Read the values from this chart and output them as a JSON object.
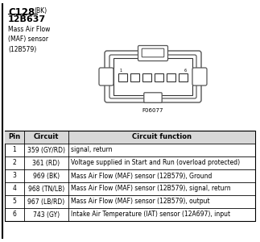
{
  "title": "C128",
  "title_suffix": "(BK)",
  "subtitle": "12B637",
  "description": "Mass Air Flow\n(MAF) sensor\n(12B579)",
  "figure_label": "F06077",
  "background_color": "#ffffff",
  "table_headers": [
    "Pin",
    "Circuit",
    "Circuit function"
  ],
  "table_rows": [
    [
      "1",
      "359 (GY/RD)",
      "signal, return"
    ],
    [
      "2",
      "361 (RD)",
      "Voltage supplied in Start and Run (overload protected)"
    ],
    [
      "3",
      "969 (BK)",
      "Mass Air Flow (MAF) sensor (12B579), Ground"
    ],
    [
      "4",
      "968 (TN/LB)",
      "Mass Air Flow (MAF) sensor (12B579), signal, return"
    ],
    [
      "5",
      "967 (LB/RD)",
      "Mass Air Flow (MAF) sensor (12B579), output"
    ],
    [
      "6",
      "743 (GY)",
      "Intake Air Temperature (IAT) sensor (12A697), input"
    ]
  ],
  "title_fontsize": 8.5,
  "subtitle_fontsize": 8.0,
  "desc_fontsize": 5.5,
  "table_header_fontsize": 6.0,
  "table_data_fontsize": 5.5
}
